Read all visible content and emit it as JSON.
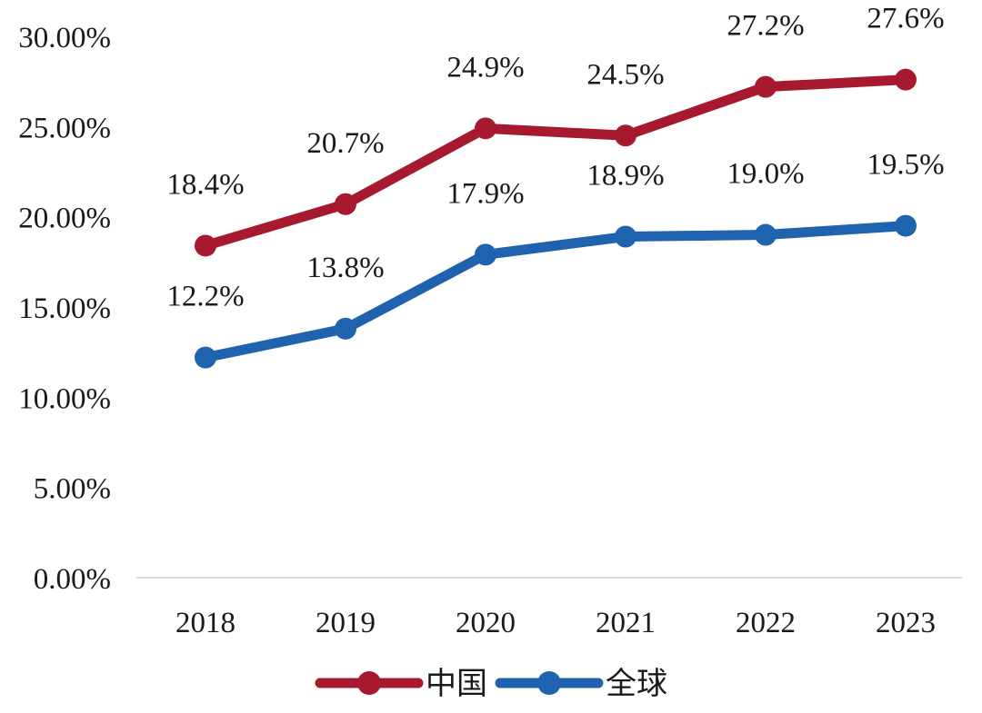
{
  "chart_data": {
    "type": "line",
    "title": "",
    "xlabel": "",
    "ylabel": "",
    "categories": [
      "2018",
      "2019",
      "2020",
      "2021",
      "2022",
      "2023"
    ],
    "ylim": [
      0,
      30
    ],
    "y_ticks": [
      0,
      5,
      10,
      15,
      20,
      25,
      30
    ],
    "y_tick_labels": [
      "0.00%",
      "5.00%",
      "10.00%",
      "15.00%",
      "20.00%",
      "25.00%",
      "30.00%"
    ],
    "grid": false,
    "legend_position": "bottom",
    "series": [
      {
        "name": "中国",
        "color": "#a6192e",
        "values": [
          18.4,
          20.7,
          24.9,
          24.5,
          27.2,
          27.6
        ],
        "labels": [
          "18.4%",
          "20.7%",
          "24.9%",
          "24.5%",
          "27.2%",
          "27.6%"
        ]
      },
      {
        "name": "全球",
        "color": "#1f63ae",
        "values": [
          12.2,
          13.8,
          17.9,
          18.9,
          19.0,
          19.5
        ],
        "labels": [
          "12.2%",
          "13.8%",
          "17.9%",
          "18.9%",
          "19.0%",
          "19.5%"
        ]
      }
    ]
  }
}
